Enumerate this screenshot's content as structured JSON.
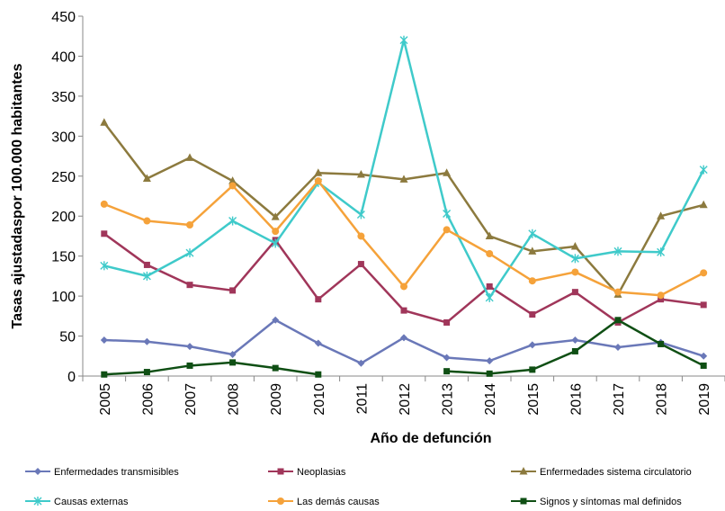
{
  "chart_data": {
    "type": "line",
    "title": "",
    "xlabel": "Año de defunción",
    "ylabel": "Tasas ajustadaspor 100.000 habitantes",
    "ylim": [
      0,
      450
    ],
    "yticks": [
      "0",
      "50",
      "100",
      "150",
      "200",
      "250",
      "300",
      "350",
      "400",
      "450"
    ],
    "categories": [
      "2005",
      "2006",
      "2007",
      "2008",
      "2009",
      "2010",
      "2011",
      "2012",
      "2013",
      "2014",
      "2015",
      "2016",
      "2017",
      "2018",
      "2019"
    ],
    "grid": false,
    "legend_position": "bottom",
    "series": [
      {
        "name": "Enfermedades transmisibles",
        "color": "#6A78B8",
        "marker": "diamond",
        "values": [
          45,
          43,
          37,
          27,
          70,
          41,
          16,
          48,
          23,
          19,
          39,
          45,
          36,
          42,
          25
        ]
      },
      {
        "name": "Neoplasias",
        "color": "#A0365A",
        "marker": "square",
        "values": [
          178,
          139,
          114,
          107,
          170,
          96,
          140,
          82,
          67,
          112,
          77,
          105,
          67,
          96,
          89
        ]
      },
      {
        "name": "Enfermedades sistema circulatorio",
        "color": "#8C7A3E",
        "marker": "triangle",
        "values": [
          317,
          247,
          273,
          244,
          199,
          254,
          252,
          246,
          254,
          175,
          156,
          162,
          102,
          200,
          214
        ]
      },
      {
        "name": "Causas externas",
        "color": "#3FCACA",
        "marker": "asterisk",
        "values": [
          138,
          125,
          154,
          194,
          166,
          242,
          202,
          420,
          203,
          98,
          178,
          147,
          156,
          155,
          258
        ]
      },
      {
        "name": "Las demás causas",
        "color": "#F5A23A",
        "marker": "circle",
        "values": [
          215,
          194,
          189,
          238,
          181,
          244,
          175,
          112,
          183,
          153,
          119,
          130,
          105,
          101,
          129
        ]
      },
      {
        "name": "Signos y síntomas mal definidos",
        "color": "#0F4F14",
        "marker": "square",
        "values": [
          2,
          5,
          13,
          17,
          10,
          2,
          null,
          null,
          6,
          3,
          8,
          31,
          70,
          40,
          13
        ]
      }
    ]
  }
}
